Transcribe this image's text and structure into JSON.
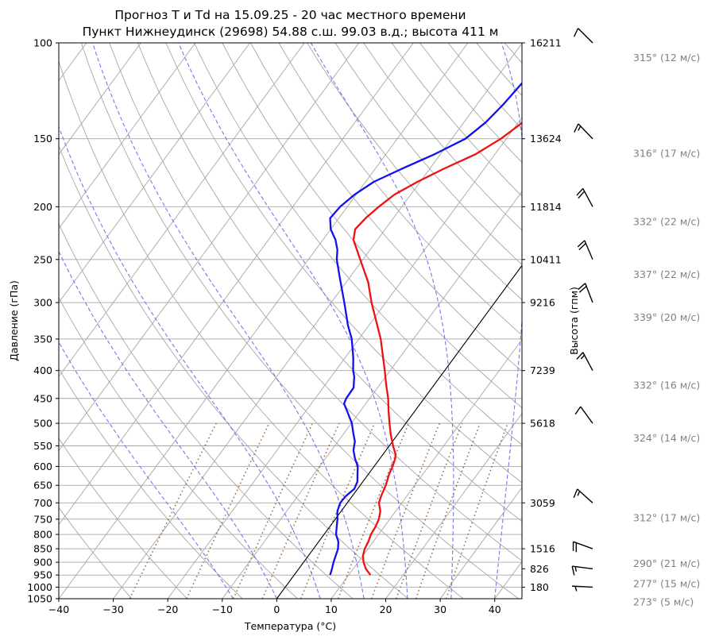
{
  "chart_data": {
    "type": "line",
    "title_line1": "Прогноз T и Td на 15.09.25 - 20 час местного времени",
    "title_line2": "Пункт Нижнеудинск (29698) 54.88 с.ш. 99.03 в.д.; высота 411 м",
    "xlabel": "Температура (°C)",
    "ylabel": "Давление (гПа)",
    "y2label": "Высота (гпм)",
    "xlim": [
      -40,
      45
    ],
    "ylim": [
      1050,
      100
    ],
    "y_scale": "log",
    "skew": true,
    "grid": true,
    "x_ticks": [
      "−40",
      "−30",
      "−20",
      "−10",
      "0",
      "10",
      "20",
      "30",
      "40"
    ],
    "p_ticks": [
      100,
      150,
      200,
      250,
      300,
      350,
      400,
      450,
      500,
      550,
      600,
      650,
      700,
      750,
      800,
      850,
      900,
      950,
      1000,
      1050
    ],
    "heights": [
      {
        "p": 100,
        "label": "16211"
      },
      {
        "p": 150,
        "label": "13624"
      },
      {
        "p": 200,
        "label": "11814"
      },
      {
        "p": 250,
        "label": "10411"
      },
      {
        "p": 300,
        "label": "9216"
      },
      {
        "p": 400,
        "label": "7239"
      },
      {
        "p": 500,
        "label": "5618"
      },
      {
        "p": 700,
        "label": "3059"
      },
      {
        "p": 850,
        "label": "1516"
      },
      {
        "p": 925,
        "label": "826"
      },
      {
        "p": 1000,
        "label": "180"
      }
    ],
    "series": [
      {
        "name": "T",
        "color": "#ee1111",
        "points": [
          [
            950,
            14.0
          ],
          [
            925,
            12.3
          ],
          [
            900,
            11.0
          ],
          [
            875,
            10.0
          ],
          [
            850,
            9.4
          ],
          [
            825,
            9.1
          ],
          [
            800,
            8.6
          ],
          [
            775,
            8.4
          ],
          [
            750,
            8.0
          ],
          [
            725,
            7.2
          ],
          [
            700,
            5.8
          ],
          [
            680,
            5.3
          ],
          [
            650,
            4.7
          ],
          [
            620,
            3.8
          ],
          [
            600,
            3.4
          ],
          [
            580,
            2.8
          ],
          [
            570,
            2.3
          ],
          [
            550,
            0.7
          ],
          [
            525,
            -1.2
          ],
          [
            500,
            -3.0
          ],
          [
            475,
            -4.8
          ],
          [
            450,
            -6.6
          ],
          [
            425,
            -8.8
          ],
          [
            400,
            -11.0
          ],
          [
            350,
            -16.0
          ],
          [
            300,
            -22.6
          ],
          [
            275,
            -26.0
          ],
          [
            250,
            -30.5
          ],
          [
            230,
            -34.4
          ],
          [
            220,
            -35.5
          ],
          [
            210,
            -35.1
          ],
          [
            200,
            -34.2
          ],
          [
            190,
            -33.0
          ],
          [
            180,
            -30.5
          ],
          [
            170,
            -27.3
          ],
          [
            160,
            -23.5
          ],
          [
            150,
            -21.0
          ],
          [
            140,
            -19.2
          ],
          [
            130,
            -17.5
          ],
          [
            120,
            -16.5
          ],
          [
            110,
            -15.8
          ],
          [
            100,
            -15.4
          ]
        ]
      },
      {
        "name": "Td",
        "color": "#1111ee",
        "points": [
          [
            950,
            6.6
          ],
          [
            925,
            6.1
          ],
          [
            900,
            5.5
          ],
          [
            875,
            5.0
          ],
          [
            850,
            4.5
          ],
          [
            825,
            3.6
          ],
          [
            800,
            2.2
          ],
          [
            775,
            1.3
          ],
          [
            750,
            0.4
          ],
          [
            725,
            -0.7
          ],
          [
            700,
            -1.3
          ],
          [
            680,
            -1.2
          ],
          [
            660,
            -0.6
          ],
          [
            640,
            -1.0
          ],
          [
            620,
            -2.0
          ],
          [
            600,
            -3.0
          ],
          [
            580,
            -4.6
          ],
          [
            560,
            -6.0
          ],
          [
            540,
            -6.9
          ],
          [
            520,
            -8.4
          ],
          [
            500,
            -9.9
          ],
          [
            480,
            -11.9
          ],
          [
            460,
            -14.0
          ],
          [
            450,
            -14.3
          ],
          [
            430,
            -14.4
          ],
          [
            410,
            -15.8
          ],
          [
            400,
            -16.8
          ],
          [
            380,
            -18.4
          ],
          [
            350,
            -21.3
          ],
          [
            330,
            -23.9
          ],
          [
            300,
            -27.6
          ],
          [
            270,
            -31.8
          ],
          [
            250,
            -34.8
          ],
          [
            240,
            -36.0
          ],
          [
            230,
            -37.7
          ],
          [
            220,
            -40.0
          ],
          [
            210,
            -41.6
          ],
          [
            200,
            -41.3
          ],
          [
            190,
            -40.3
          ],
          [
            180,
            -38.5
          ],
          [
            170,
            -35.0
          ],
          [
            160,
            -31.0
          ],
          [
            150,
            -27.5
          ],
          [
            140,
            -26.0
          ],
          [
            130,
            -25.2
          ],
          [
            120,
            -24.7
          ],
          [
            110,
            -24.2
          ],
          [
            100,
            -23.8
          ]
        ]
      }
    ],
    "wind": [
      {
        "p": 100,
        "dir": 315,
        "speed": 12,
        "label": "315° (12 м/с)"
      },
      {
        "p": 150,
        "dir": 316,
        "speed": 17,
        "label": "316° (17 м/с)"
      },
      {
        "p": 200,
        "dir": 332,
        "speed": 22,
        "label": "332° (22 м/с)"
      },
      {
        "p": 250,
        "dir": 337,
        "speed": 22,
        "label": "337° (22 м/с)"
      },
      {
        "p": 300,
        "dir": 339,
        "speed": 20,
        "label": "339° (20 м/с)"
      },
      {
        "p": 400,
        "dir": 332,
        "speed": 16,
        "label": "332° (16 м/с)"
      },
      {
        "p": 500,
        "dir": 324,
        "speed": 14,
        "label": "324° (14 м/с)"
      },
      {
        "p": 700,
        "dir": 312,
        "speed": 17,
        "label": "312° (17 м/с)"
      },
      {
        "p": 850,
        "dir": 290,
        "speed": 21,
        "label": "290° (21 м/с)"
      },
      {
        "p": 925,
        "dir": 277,
        "speed": 15,
        "label": "277° (15 м/с)"
      },
      {
        "p": 1000,
        "dir": 273,
        "speed": 5,
        "label": "273° (5 м/с)"
      }
    ],
    "colors": {
      "isotherm": "#a6a6a6",
      "dry_adiabat": "#a6a6a6",
      "moist_adiabat": "#7777ee",
      "mixing_ratio": "#9a6a44",
      "zero_isotherm": "#000000",
      "wind_text": "#808080"
    }
  }
}
